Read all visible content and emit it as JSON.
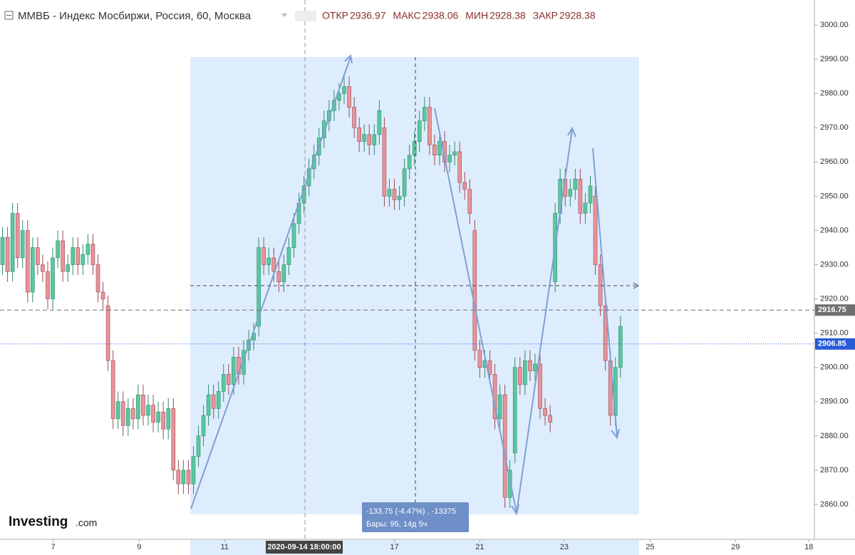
{
  "chart_data": {
    "type": "candlestick",
    "title": "ММВБ - Индекс Мосбиржи, Россия, 60, Москва",
    "ohlc_header": [
      {
        "label": "ОТКР",
        "value": 2936.97
      },
      {
        "label": "МАКС",
        "value": 2938.06
      },
      {
        "label": "МИН",
        "value": 2928.38
      },
      {
        "label": "ЗАКР",
        "value": 2928.38
      }
    ],
    "open": [
      2930,
      2938,
      2928,
      2945,
      2932,
      2940,
      2922,
      2935,
      2930,
      2928,
      2920,
      2932,
      2937,
      2928,
      2930,
      2935,
      2930,
      2933,
      2936,
      2930,
      2922,
      2918,
      2902,
      2885,
      2890,
      2883,
      2888,
      2885,
      2892,
      2886,
      2889,
      2884,
      2887,
      2882,
      2888,
      2870,
      2866,
      2870,
      2866,
      2874,
      2880,
      2886,
      2892,
      2888,
      2893,
      2898,
      2895,
      2903,
      2898,
      2905,
      2908,
      2912,
      2935,
      2930,
      2932,
      2928,
      2925,
      2930,
      2935,
      2942,
      2948,
      2953,
      2958,
      2962,
      2967,
      2972,
      2975,
      2978,
      2980,
      2982,
      2976,
      2970,
      2966,
      2968,
      2965,
      2968,
      2970,
      2950,
      2952,
      2949,
      2950,
      2958,
      2962,
      2966,
      2972,
      2976,
      2965,
      2962,
      2966,
      2960,
      2962,
      2963,
      2954,
      2952,
      2940,
      2905,
      2900,
      2902,
      2898,
      2885,
      2892,
      2862,
      2875,
      2900,
      2895,
      2902,
      2899,
      2901,
      2888,
      2886,
      2925,
      2945,
      2955,
      2950,
      2952,
      2955,
      2945,
      2948,
      2950,
      2930,
      2918,
      2902,
      2886,
      2900
    ],
    "high": [
      2941,
      2941,
      2948,
      2948,
      2943,
      2943,
      2938,
      2938,
      2933,
      2931,
      2935,
      2940,
      2940,
      2933,
      2938,
      2938,
      2936,
      2939,
      2939,
      2933,
      2925,
      2921,
      2905,
      2893,
      2893,
      2891,
      2891,
      2895,
      2895,
      2892,
      2892,
      2890,
      2890,
      2891,
      2891,
      2873,
      2873,
      2873,
      2877,
      2883,
      2889,
      2895,
      2895,
      2896,
      2901,
      2901,
      2906,
      2906,
      2908,
      2911,
      2913,
      2938,
      2938,
      2935,
      2935,
      2931,
      2933,
      2938,
      2945,
      2951,
      2956,
      2961,
      2965,
      2970,
      2975,
      2978,
      2981,
      2983,
      2985,
      2985,
      2979,
      2973,
      2971,
      2971,
      2971,
      2978,
      2973,
      2955,
      2955,
      2953,
      2961,
      2965,
      2969,
      2975,
      2979,
      2979,
      2968,
      2969,
      2969,
      2965,
      2966,
      2966,
      2957,
      2955,
      2943,
      2908,
      2905,
      2905,
      2901,
      2895,
      2895,
      2873,
      2903,
      2903,
      2905,
      2905,
      2904,
      2904,
      2891,
      2889,
      2948,
      2958,
      2958,
      2955,
      2958,
      2958,
      2951,
      2956,
      2953,
      2933,
      2921,
      2905,
      2903,
      2915
    ],
    "low": [
      2927,
      2925,
      2925,
      2929,
      2929,
      2919,
      2919,
      2927,
      2925,
      2917,
      2917,
      2929,
      2925,
      2925,
      2927,
      2927,
      2927,
      2930,
      2927,
      2919,
      2917,
      2899,
      2882,
      2882,
      2880,
      2880,
      2882,
      2882,
      2883,
      2883,
      2881,
      2881,
      2879,
      2879,
      2867,
      2863,
      2863,
      2863,
      2863,
      2871,
      2877,
      2883,
      2885,
      2885,
      2890,
      2892,
      2892,
      2895,
      2895,
      2902,
      2905,
      2909,
      2927,
      2927,
      2925,
      2922,
      2922,
      2927,
      2932,
      2939,
      2945,
      2950,
      2955,
      2959,
      2964,
      2969,
      2972,
      2975,
      2977,
      2973,
      2967,
      2963,
      2963,
      2962,
      2962,
      2965,
      2947,
      2947,
      2946,
      2946,
      2947,
      2955,
      2959,
      2963,
      2969,
      2962,
      2959,
      2959,
      2957,
      2957,
      2959,
      2951,
      2949,
      2942,
      2902,
      2897,
      2897,
      2895,
      2882,
      2882,
      2859,
      2859,
      2872,
      2892,
      2892,
      2896,
      2896,
      2885,
      2883,
      2881,
      2922,
      2942,
      2947,
      2947,
      2949,
      2942,
      2942,
      2945,
      2927,
      2915,
      2899,
      2883,
      2883,
      2897
    ],
    "close": [
      2938,
      2928,
      2945,
      2932,
      2940,
      2922,
      2935,
      2930,
      2928,
      2920,
      2932,
      2937,
      2928,
      2930,
      2935,
      2930,
      2933,
      2936,
      2930,
      2922,
      2920,
      2902,
      2885,
      2890,
      2883,
      2888,
      2885,
      2892,
      2886,
      2889,
      2884,
      2887,
      2882,
      2888,
      2870,
      2866,
      2870,
      2866,
      2874,
      2880,
      2886,
      2892,
      2888,
      2893,
      2898,
      2895,
      2903,
      2898,
      2905,
      2908,
      2910,
      2935,
      2930,
      2932,
      2928,
      2925,
      2930,
      2935,
      2942,
      2948,
      2953,
      2958,
      2962,
      2967,
      2972,
      2975,
      2978,
      2980,
      2982,
      2976,
      2970,
      2966,
      2968,
      2965,
      2968,
      2975,
      2950,
      2952,
      2949,
      2950,
      2958,
      2962,
      2966,
      2972,
      2976,
      2965,
      2962,
      2966,
      2960,
      2962,
      2963,
      2954,
      2952,
      2945,
      2905,
      2900,
      2902,
      2898,
      2885,
      2892,
      2862,
      2870,
      2900,
      2895,
      2902,
      2899,
      2901,
      2888,
      2886,
      2884,
      2945,
      2955,
      2950,
      2952,
      2955,
      2945,
      2948,
      2953,
      2930,
      2918,
      2902,
      2886,
      2900,
      2912
    ],
    "up_color": "#5ac7a0",
    "down_color": "#e8939a",
    "ylim": [
      2849.8,
      3007.3
    ],
    "yticks": [
      {
        "value": 2860,
        "label": "2860.00"
      },
      {
        "value": 2870,
        "label": "2870.00"
      },
      {
        "value": 2880,
        "label": "2880.00"
      },
      {
        "value": 2890,
        "label": "2890.00"
      },
      {
        "value": 2900,
        "label": "2900.00"
      },
      {
        "value": 2910,
        "label": "2910.00"
      },
      {
        "value": 2920,
        "label": "2920.00"
      },
      {
        "value": 2930,
        "label": "2930.00"
      },
      {
        "value": 2940,
        "label": "2940.00"
      },
      {
        "value": 2950,
        "label": "2950.00"
      },
      {
        "value": 2960,
        "label": "2960.00"
      },
      {
        "value": 2970,
        "label": "2970.00"
      },
      {
        "value": 2980,
        "label": "2980.00"
      },
      {
        "value": 2990,
        "label": "2990.00"
      },
      {
        "value": 3000,
        "label": "3000.00"
      }
    ],
    "xlim": [
      -0.5,
      161.6
    ],
    "xticks": [
      {
        "value": 10.1,
        "label": "7"
      },
      {
        "value": 27.2,
        "label": "9"
      },
      {
        "value": 44.2,
        "label": "11"
      },
      {
        "value": 78,
        "label": "17"
      },
      {
        "value": 95,
        "label": "21"
      },
      {
        "value": 111.8,
        "label": "23"
      },
      {
        "value": 128.9,
        "label": "25"
      },
      {
        "value": 145.9,
        "label": "29"
      },
      {
        "value": 160.5,
        "label": "18"
      }
    ],
    "price_tags": [
      {
        "value": 2916.75,
        "color": "#6f6f6f"
      },
      {
        "value": 2906.85,
        "color": "#2a5bd7"
      }
    ],
    "crosshair_time": "2020-09-14 18:00:00",
    "measure": [
      "-133.75 (-4.47%) , -13375",
      "Бары: 95, 14д 5ч"
    ],
    "logo": {
      "name": "Investing",
      "suffix": ".com"
    }
  }
}
